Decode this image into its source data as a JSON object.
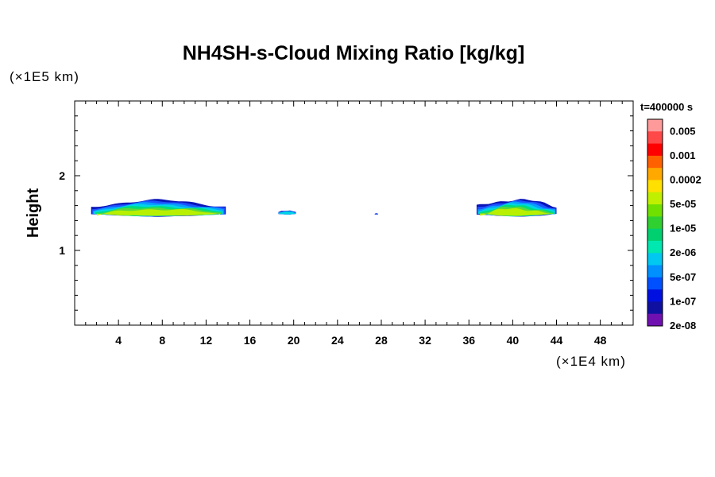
{
  "chart_data": {
    "type": "heatmap",
    "title": "NH4SH-s-Cloud Mixing Ratio [kg/kg]",
    "xlabel": "",
    "ylabel": "Height",
    "x_unit": "(×1E4 km)",
    "y_unit": "(×1E5 km)",
    "xlim": [
      0,
      51
    ],
    "ylim": [
      0,
      3
    ],
    "x_ticks": [
      4,
      8,
      12,
      16,
      20,
      24,
      28,
      32,
      36,
      40,
      44,
      48
    ],
    "y_ticks": [
      1,
      2
    ],
    "time_label": "t=400000 s",
    "colorbar": {
      "labels": [
        "0.005",
        "0.001",
        "0.0002",
        "5e-05",
        "1e-05",
        "2e-06",
        "5e-07",
        "1e-07",
        "2e-08"
      ],
      "colors": [
        "#ff9a9a",
        "#ff4848",
        "#ff0000",
        "#ff6000",
        "#ffa800",
        "#ffe000",
        "#c0f000",
        "#70e000",
        "#30d030",
        "#00d070",
        "#00e8b0",
        "#00c8f0",
        "#0090ff",
        "#0050ff",
        "#0010e0",
        "#1010a0",
        "#7010b0"
      ]
    },
    "cloud_regions": [
      {
        "x_start": 1.5,
        "x_end": 13.8,
        "y_bottom": 1.45,
        "y_top": 1.69
      },
      {
        "x_start": 18.6,
        "x_end": 20.2,
        "y_bottom": 1.48,
        "y_top": 1.54
      },
      {
        "x_start": 27.4,
        "x_end": 27.7,
        "y_bottom": 1.48,
        "y_top": 1.5
      },
      {
        "x_start": 36.7,
        "x_end": 44.0,
        "y_bottom": 1.45,
        "y_top": 1.7
      }
    ]
  }
}
